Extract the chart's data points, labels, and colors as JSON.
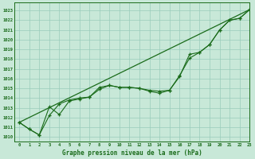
{
  "title": "Graphe pression niveau de la mer (hPa)",
  "bg_color": "#c8e8d8",
  "grid_color": "#99ccbb",
  "line_color": "#1a6b1a",
  "xlim": [
    -0.5,
    23
  ],
  "ylim": [
    1009.5,
    1023.8
  ],
  "xticks": [
    0,
    1,
    2,
    3,
    4,
    5,
    6,
    7,
    8,
    9,
    10,
    11,
    12,
    13,
    14,
    15,
    16,
    17,
    18,
    19,
    20,
    21,
    22,
    23
  ],
  "yticks": [
    1010,
    1011,
    1012,
    1013,
    1014,
    1015,
    1016,
    1017,
    1018,
    1019,
    1020,
    1021,
    1022,
    1023
  ],
  "x_series": [
    0,
    1,
    2,
    3,
    4,
    5,
    6,
    7,
    8,
    9,
    10,
    11,
    12,
    13,
    14,
    15,
    16,
    17,
    18,
    19,
    20,
    21,
    22,
    23
  ],
  "series1": [
    1011.5,
    1010.8,
    1010.2,
    1012.2,
    1013.4,
    1013.8,
    1014.0,
    1014.1,
    1014.9,
    1015.3,
    1015.1,
    1015.1,
    1015.0,
    1014.8,
    1014.7,
    1014.8,
    1016.3,
    1018.1,
    1018.7,
    1019.5,
    1021.0,
    1022.0,
    1022.2,
    1023.1
  ],
  "series2": [
    1011.5,
    1010.8,
    1010.2,
    1013.1,
    1012.3,
    1013.7,
    1013.9,
    1014.1,
    1015.1,
    1015.3,
    1015.1,
    1015.1,
    1015.0,
    1014.7,
    1014.5,
    1014.8,
    1016.2,
    1018.5,
    1018.7,
    1019.5,
    1021.0,
    1022.0,
    1022.2,
    1023.1
  ],
  "series3_x": [
    0,
    23
  ],
  "series3_y": [
    1011.5,
    1023.1
  ]
}
